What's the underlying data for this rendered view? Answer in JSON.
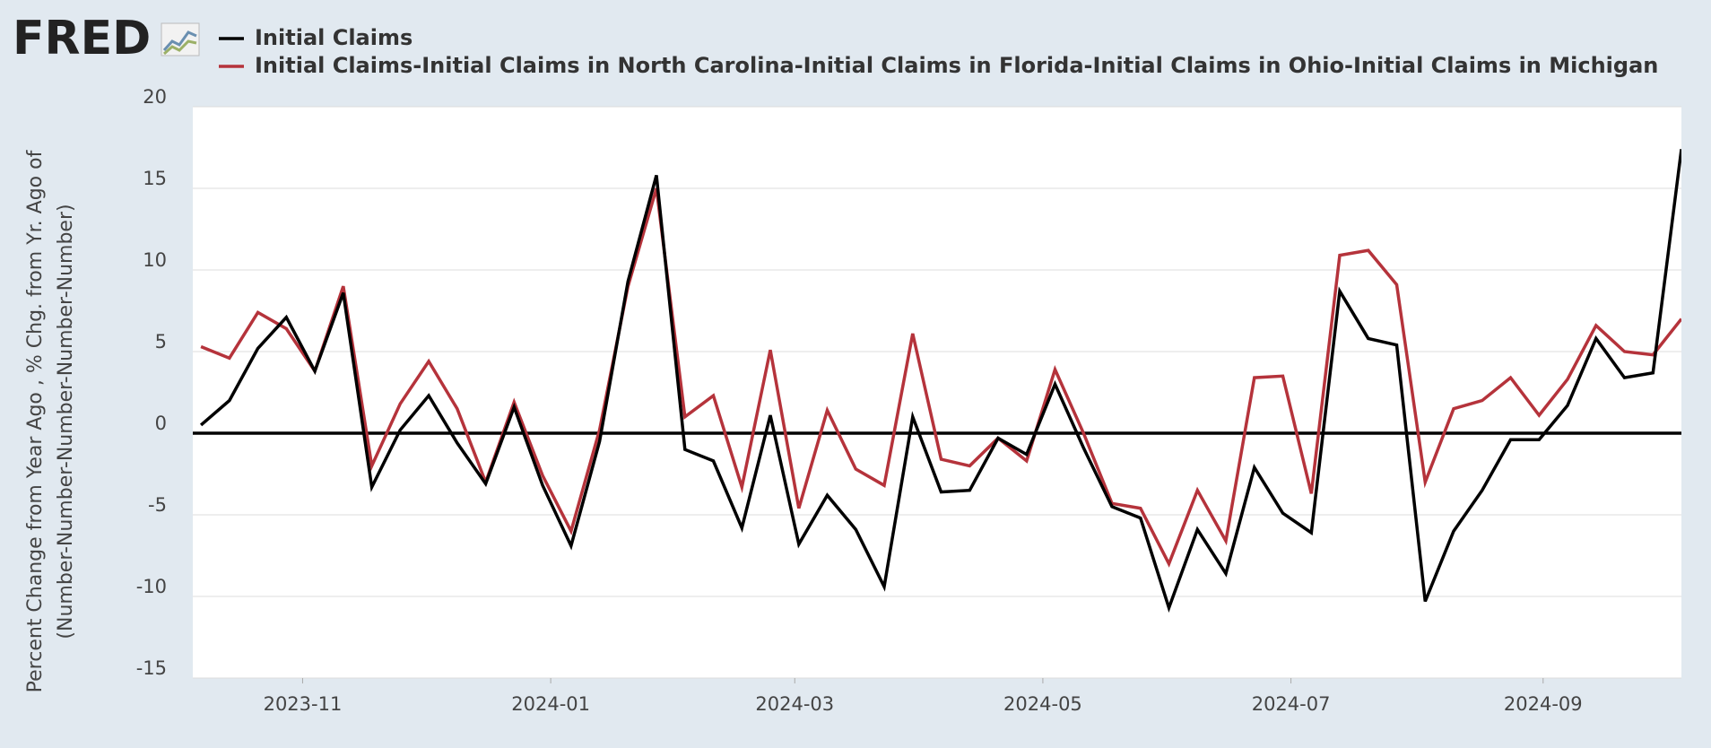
{
  "logo": "FRED",
  "chart_data": {
    "type": "line",
    "ylabel": [
      "Percent Change from Year Ago , % Chg. from Yr. Ago of",
      "(Number-Number-Number-Number-Number)"
    ],
    "x": [
      "2023-10-07",
      "2023-10-14",
      "2023-10-21",
      "2023-10-28",
      "2023-11-04",
      "2023-11-11",
      "2023-11-18",
      "2023-11-25",
      "2023-12-02",
      "2023-12-09",
      "2023-12-16",
      "2023-12-23",
      "2023-12-30",
      "2024-01-06",
      "2024-01-13",
      "2024-01-20",
      "2024-01-27",
      "2024-02-03",
      "2024-02-10",
      "2024-02-17",
      "2024-02-24",
      "2024-03-02",
      "2024-03-09",
      "2024-03-16",
      "2024-03-23",
      "2024-03-30",
      "2024-04-06",
      "2024-04-13",
      "2024-04-20",
      "2024-04-27",
      "2024-05-04",
      "2024-05-11",
      "2024-05-18",
      "2024-05-25",
      "2024-06-01",
      "2024-06-08",
      "2024-06-15",
      "2024-06-22",
      "2024-06-29",
      "2024-07-06",
      "2024-07-13",
      "2024-07-20",
      "2024-07-27",
      "2024-08-03",
      "2024-08-10",
      "2024-08-17",
      "2024-08-24",
      "2024-08-31",
      "2024-09-07",
      "2024-09-14",
      "2024-09-21",
      "2024-09-28",
      "2024-10-05"
    ],
    "series": [
      {
        "name": "Initial Claims",
        "color": "#000000",
        "values": [
          0.5,
          2,
          5.2,
          7.1,
          3.8,
          8.6,
          -3.3,
          0.2,
          2.3,
          -0.6,
          -3.1,
          1.6,
          -3.2,
          -6.9,
          -0.5,
          9.3,
          15.8,
          -1.0,
          -1.7,
          -5.8,
          1.1,
          -6.8,
          -3.8,
          -5.9,
          -9.4,
          1.0,
          -3.6,
          -3.5,
          -0.3,
          -1.3,
          3.0,
          -0.9,
          -4.5,
          -5.2,
          -10.7,
          -5.9,
          -8.6,
          -2.1,
          -4.9,
          -6.1,
          8.7,
          5.8,
          5.4,
          -10.3,
          -6.0,
          -3.5,
          -0.4,
          -0.4,
          1.7,
          5.8,
          3.4,
          3.7,
          17.4
        ]
      },
      {
        "name": "Initial Claims-Initial Claims in North Carolina-Initial Claims in Florida-Initial Claims in Ohio-Initial Claims in Michigan",
        "color": "#b5333b",
        "values": [
          5.3,
          4.6,
          7.4,
          6.4,
          3.8,
          9.0,
          -2.0,
          1.8,
          4.4,
          1.5,
          -3.0,
          1.9,
          -2.6,
          -6.0,
          0.2,
          9.0,
          15.0,
          1.0,
          2.3,
          -3.3,
          5.1,
          -4.6,
          1.4,
          -2.2,
          -3.2,
          6.1,
          -1.6,
          -2.0,
          -0.3,
          -1.7,
          3.9,
          0.0,
          -4.3,
          -4.6,
          -8.0,
          -3.5,
          -6.6,
          3.4,
          3.5,
          -3.7,
          10.9,
          11.2,
          9.1,
          -3.0,
          1.5,
          2.0,
          3.4,
          1.1,
          3.3,
          6.6,
          5.0,
          4.8,
          7.0
        ]
      }
    ],
    "xlim": [
      "2023-10-05",
      "2024-10-05"
    ],
    "xticks": [
      {
        "value": "2023-11-01",
        "label": "2023-11"
      },
      {
        "value": "2024-01-01",
        "label": "2024-01"
      },
      {
        "value": "2024-03-01",
        "label": "2024-03"
      },
      {
        "value": "2024-05-01",
        "label": "2024-05"
      },
      {
        "value": "2024-07-01",
        "label": "2024-07"
      },
      {
        "value": "2024-09-01",
        "label": "2024-09"
      }
    ],
    "ylim": [
      -15,
      20
    ],
    "yticks": [
      -15,
      -10,
      -5,
      0,
      5,
      10,
      15,
      20
    ],
    "grid": true
  }
}
